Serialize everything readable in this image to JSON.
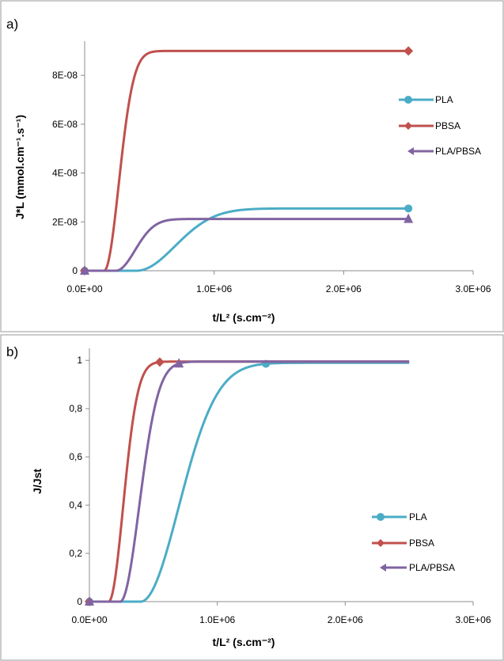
{
  "colors": {
    "PLA": "#4BACC6",
    "PBSA": "#C0504D",
    "PLA/PBSA": "#8064A2",
    "axis": "#8c8c8c",
    "frame": "#9a9a9a"
  },
  "chart_data": [
    {
      "panel_label": "a)",
      "type": "line",
      "xlabel": "t/L² (s.cm⁻²)",
      "ylabel": "J*L (mmol.cm⁻¹.s⁻¹)",
      "xlim": [
        0,
        3000000
      ],
      "ylim": [
        0,
        9.4e-08
      ],
      "x_ticks": [
        0,
        1000000,
        2000000,
        3000000
      ],
      "x_tick_labels": [
        "0.0E+00",
        "1.0E+06",
        "2.0E+06",
        "3.0E+06"
      ],
      "y_ticks": [
        0,
        2e-08,
        4e-08,
        6e-08,
        8e-08
      ],
      "y_tick_labels": [
        "0",
        "2E-08",
        "4E-08",
        "6E-08",
        "8E-08"
      ],
      "grid": false,
      "legend_position": "right",
      "series": [
        {
          "name": "PLA",
          "marker": "circle",
          "lag": 400000,
          "scale": 420000,
          "steady": 2.55e-08,
          "marker_x": [
            2500000
          ]
        },
        {
          "name": "PBSA",
          "marker": "diamond",
          "lag": 150000,
          "scale": 160000,
          "steady": 9e-08,
          "marker_x": [
            2500000
          ]
        },
        {
          "name": "PLA/PBSA",
          "marker": "triangle",
          "lag": 240000,
          "scale": 210000,
          "steady": 2.12e-08,
          "marker_x": [
            2500000
          ]
        }
      ]
    },
    {
      "panel_label": "b)",
      "type": "line",
      "xlabel": "t/L² (s.cm⁻²)",
      "ylabel": "J/Jst",
      "xlim": [
        0,
        3000000
      ],
      "ylim": [
        0,
        1.05
      ],
      "x_ticks": [
        0,
        1000000,
        2000000,
        3000000
      ],
      "x_tick_labels": [
        "0.0E+00",
        "1.0E+06",
        "2.0E+06",
        "3.0E+06"
      ],
      "y_ticks": [
        0,
        0.2,
        0.4,
        0.6,
        0.8,
        1
      ],
      "y_tick_labels": [
        "0",
        "0,2",
        "0,4",
        "0,6",
        "0,8",
        "1"
      ],
      "grid": false,
      "legend_position": "right",
      "series": [
        {
          "name": "PLA",
          "marker": "circle",
          "lag": 400000,
          "scale": 420000,
          "steady": 0.99,
          "marker_x": [
            1380000
          ]
        },
        {
          "name": "PBSA",
          "marker": "diamond",
          "lag": 150000,
          "scale": 160000,
          "steady": 0.995,
          "marker_x": [
            550000
          ]
        },
        {
          "name": "PLA/PBSA",
          "marker": "triangle",
          "lag": 240000,
          "scale": 210000,
          "steady": 0.995,
          "marker_x": [
            700000
          ]
        }
      ]
    }
  ]
}
